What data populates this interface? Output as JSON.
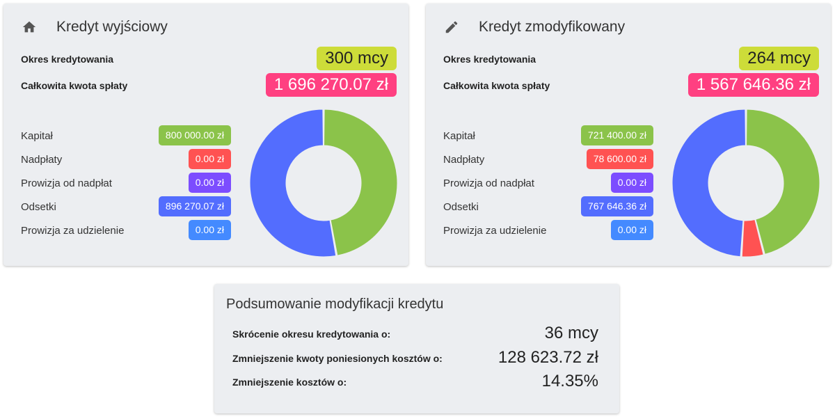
{
  "original": {
    "title": "Kredyt wyjściowy",
    "icon": "home-icon",
    "period_label": "Okres kredytowania",
    "period_value": "300 mcy",
    "total_label": "Całkowita kwota spłaty",
    "total_value": "1 696 270.07 zł",
    "items": [
      {
        "label": "Kapitał",
        "value": "800 000.00 zł",
        "color": "#8bc34a"
      },
      {
        "label": "Nadpłaty",
        "value": "0.00 zł",
        "color": "#ff5252"
      },
      {
        "label": "Prowizja od nadpłat",
        "value": "0.00 zł",
        "color": "#7c4dff"
      },
      {
        "label": "Odsetki",
        "value": "896 270.07 zł",
        "color": "#536dfe"
      },
      {
        "label": "Prowizja za udzielenie",
        "value": "0.00 zł",
        "color": "#448aff"
      }
    ],
    "chart_data": {
      "type": "pie",
      "categories": [
        "Kapitał",
        "Nadpłaty",
        "Prowizja od nadpłat",
        "Odsetki",
        "Prowizja za udzielenie"
      ],
      "values": [
        800000.0,
        0.0,
        0.0,
        896270.07,
        0.0
      ],
      "colors": [
        "#8bc34a",
        "#ff5252",
        "#7c4dff",
        "#536dfe",
        "#448aff"
      ]
    }
  },
  "modified": {
    "title": "Kredyt zmodyfikowany",
    "icon": "pencil-icon",
    "period_label": "Okres kredytowania",
    "period_value": "264 mcy",
    "total_label": "Całkowita kwota spłaty",
    "total_value": "1 567 646.36 zł",
    "items": [
      {
        "label": "Kapitał",
        "value": "721 400.00 zł",
        "color": "#8bc34a"
      },
      {
        "label": "Nadpłaty",
        "value": "78 600.00 zł",
        "color": "#ff5252"
      },
      {
        "label": "Prowizja od nadpłat",
        "value": "0.00 zł",
        "color": "#7c4dff"
      },
      {
        "label": "Odsetki",
        "value": "767 646.36 zł",
        "color": "#536dfe"
      },
      {
        "label": "Prowizja za udzielenie",
        "value": "0.00 zł",
        "color": "#448aff"
      }
    ],
    "chart_data": {
      "type": "pie",
      "categories": [
        "Kapitał",
        "Nadpłaty",
        "Prowizja od nadpłat",
        "Odsetki",
        "Prowizja za udzielenie"
      ],
      "values": [
        721400.0,
        78600.0,
        0.0,
        767646.36,
        0.0
      ],
      "colors": [
        "#8bc34a",
        "#ff5252",
        "#7c4dff",
        "#536dfe",
        "#448aff"
      ]
    }
  },
  "summary": {
    "title": "Podsumowanie modyfikacji kredytu",
    "rows": [
      {
        "label": "Skrócenie okresu kredytowania o:",
        "value": "36 mcy"
      },
      {
        "label": "Zmniejszenie kwoty poniesionych kosztów o:",
        "value": "128 623.72 zł"
      },
      {
        "label": "Zmniejszenie kosztów o:",
        "value": "14.35%"
      }
    ]
  }
}
